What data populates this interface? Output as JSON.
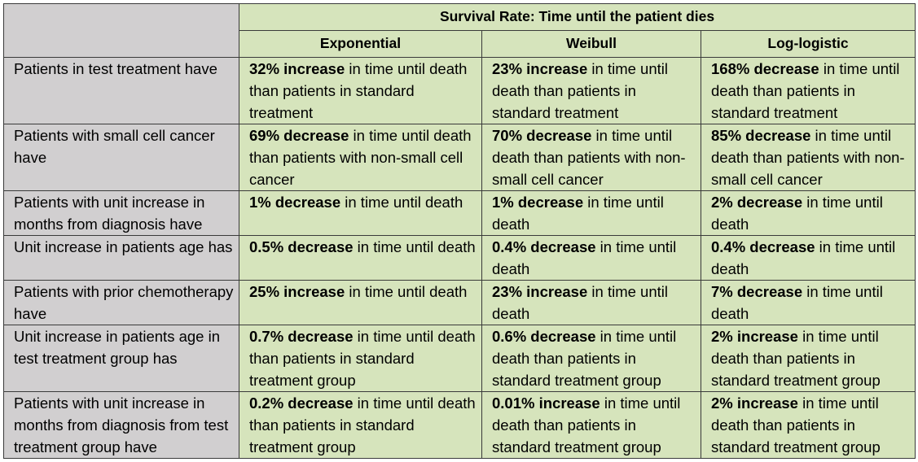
{
  "table": {
    "title": "Survival Rate: Time until the patient dies",
    "columns": [
      "Exponential",
      "Weibull",
      "Log-logistic"
    ],
    "rows": [
      {
        "label": "Patients in test treatment have",
        "cells": [
          {
            "bold": "32% increase",
            "rest": " in time until death than patients in standard treatment"
          },
          {
            "bold": "23% increase",
            "rest": " in time until death than patients in standard treatment"
          },
          {
            "bold": "168% decrease",
            "rest": " in time until death than patients in standard treatment"
          }
        ]
      },
      {
        "label": "Patients with small cell cancer have",
        "cells": [
          {
            "bold": "69% decrease",
            "rest": " in time until death than patients with non-small cell cancer"
          },
          {
            "bold": "70% decrease",
            "rest": " in time until death than patients with non-small cell cancer"
          },
          {
            "bold": "85% decrease",
            "rest": " in time until death than patients with non-small cell cancer"
          }
        ]
      },
      {
        "label": "Patients with unit increase in months from diagnosis have",
        "cells": [
          {
            "bold": "1% decrease",
            "rest": " in time until death"
          },
          {
            "bold": "1% decrease",
            "rest": " in time until death"
          },
          {
            "bold": "2% decrease",
            "rest": " in time until death"
          }
        ]
      },
      {
        "label": "Unit increase in patients age has",
        "cells": [
          {
            "bold": "0.5% decrease",
            "rest": " in time until death"
          },
          {
            "bold": "0.4% decrease",
            "rest": " in time until death"
          },
          {
            "bold": "0.4% decrease",
            "rest": " in time until death"
          }
        ]
      },
      {
        "label": "Patients with prior chemotherapy have",
        "cells": [
          {
            "bold": "25% increase",
            "rest": " in time until death"
          },
          {
            "bold": "23% increase",
            "rest": " in time until death"
          },
          {
            "bold": "7% decrease",
            "rest": " in time until death"
          }
        ]
      },
      {
        "label": "Unit increase in patients age in test treatment group has",
        "cells": [
          {
            "bold": "0.7% decrease",
            "rest": " in time until death than patients in standard treatment group"
          },
          {
            "bold": "0.6% decrease",
            "rest": " in time until death than patients in standard treatment group"
          },
          {
            "bold": "2% increase",
            "rest": " in time until death than patients in standard treatment group"
          }
        ]
      },
      {
        "label": "Patients with unit increase in months from diagnosis from test treatment group have",
        "cells": [
          {
            "bold": "0.2% decrease",
            "rest": " in time until death than patients in standard treatment group"
          },
          {
            "bold": "0.01% increase",
            "rest": " in time until death than patients in standard treatment group"
          },
          {
            "bold": "2% increase",
            "rest": " in time until death than patients in standard treatment group"
          }
        ]
      }
    ]
  }
}
